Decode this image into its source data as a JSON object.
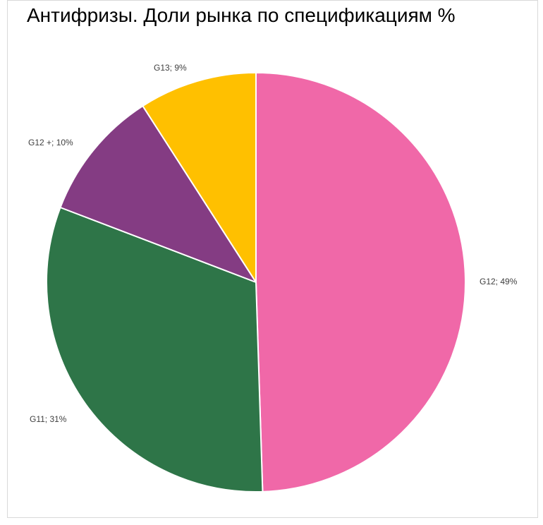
{
  "chart_data": {
    "type": "pie",
    "title": "Антифризы. Доли рынка по спецификациям %",
    "categories": [
      "G12",
      "G11",
      "G12 +",
      "G13"
    ],
    "values": [
      49,
      31,
      10,
      9
    ],
    "labels": [
      "G12; 49%",
      "G11; 31%",
      "G12 +; 10%",
      "G13; 9%"
    ],
    "colors": [
      "#f068a8",
      "#2e7548",
      "#843c83",
      "#ffc000"
    ],
    "slice_border_color": "#ffffff",
    "start_angle_deg": 0,
    "direction": "clockwise",
    "legend": "none"
  }
}
